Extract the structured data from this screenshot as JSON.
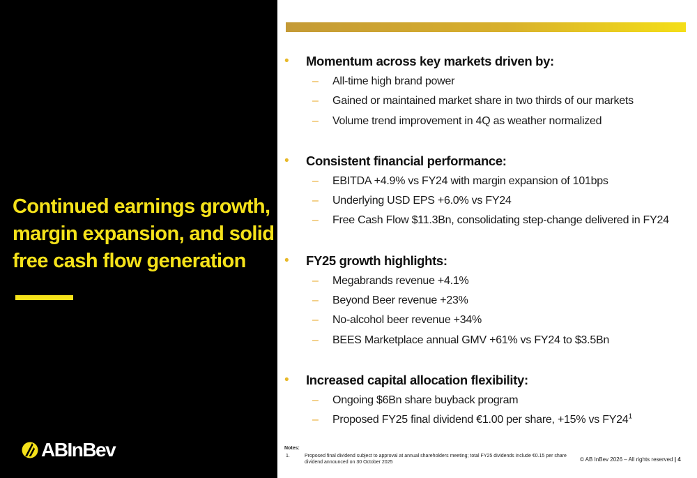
{
  "left": {
    "headline": [
      "Continued earnings growth,",
      "margin expansion, and solid",
      "free cash flow generation"
    ],
    "logo_text": "ABInBev"
  },
  "colors": {
    "accent_yellow": "#f5e21a",
    "bullet_gold": "#e8b92a",
    "panel_black": "#000000"
  },
  "sections": [
    {
      "title": "Momentum across key markets driven by:",
      "items": [
        "All-time high brand power",
        "Gained or maintained market share in two thirds of our markets",
        "Volume trend improvement in 4Q as weather normalized"
      ]
    },
    {
      "title": "Consistent financial performance:",
      "items": [
        "EBITDA +4.9% vs FY24 with margin expansion of 101bps",
        "Underlying USD EPS +6.0% vs FY24",
        "Free Cash Flow $11.3Bn, consolidating step-change delivered in FY24"
      ]
    },
    {
      "title": "FY25 growth highlights:",
      "items": [
        "Megabrands revenue +4.1%",
        "Beyond Beer revenue +23%",
        "No-alcohol beer revenue +34%",
        "BEES Marketplace annual GMV +61% vs FY24 to $3.5Bn"
      ]
    },
    {
      "title": "Increased capital allocation flexibility:",
      "items": [
        "Ongoing $6Bn share buyback program",
        "Proposed FY25 final dividend €1.00 per share, +15% vs FY24"
      ],
      "last_item_superscript": "1"
    }
  ],
  "bullet_symbol": "•",
  "dash_symbol": "–",
  "notes": {
    "title": "Notes:",
    "items": [
      {
        "number": "1.",
        "text": "Proposed final dividend subject to approval at annual shareholders meeting; total FY25 dividends include €0.15 per share dividend announced on 30 October 2025"
      }
    ]
  },
  "footer": {
    "copyright": "© AB InBev 2026 – All rights reserved",
    "separator": "|",
    "page": "4"
  }
}
